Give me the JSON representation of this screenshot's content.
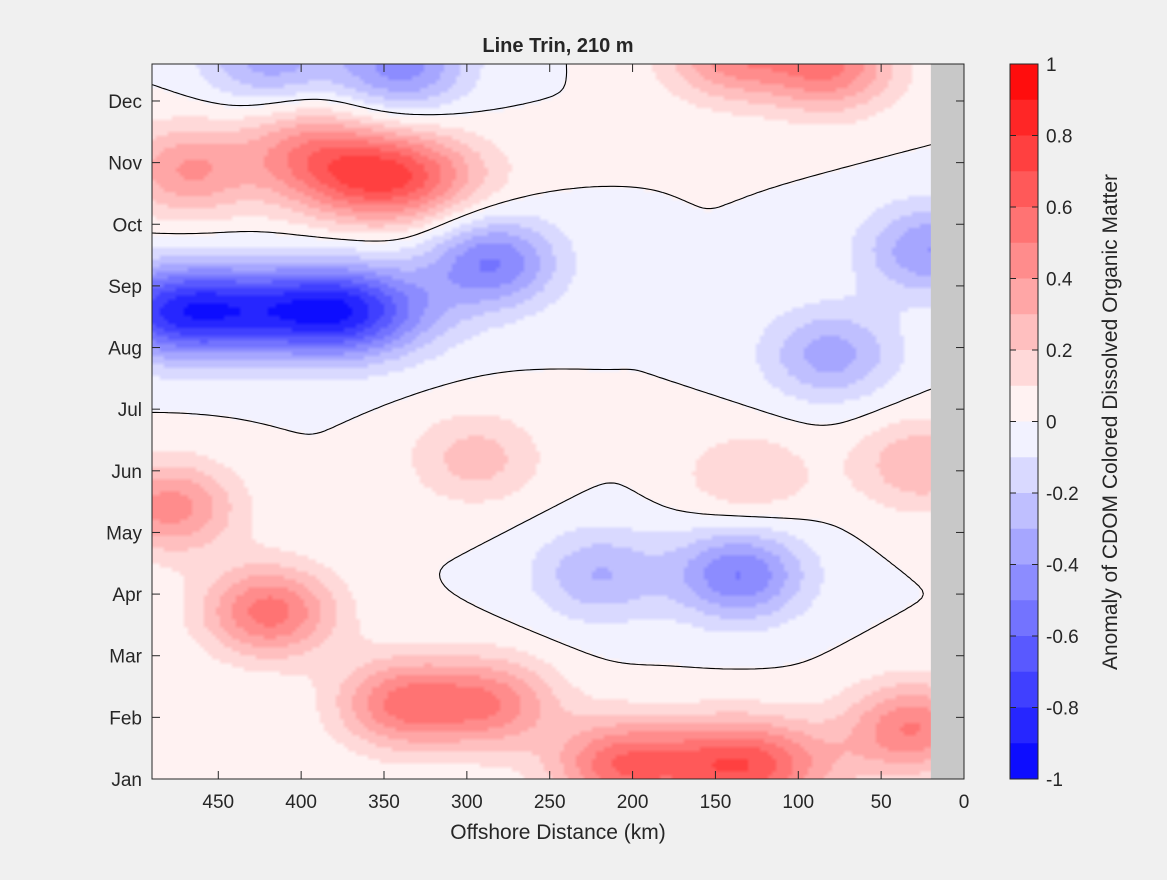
{
  "chart_data": {
    "type": "heatmap",
    "title": "Line Trin, 210 m",
    "xlabel": "Offshore Distance (km)",
    "ylabel": "",
    "xlim": [
      490,
      0
    ],
    "x_reversed": true,
    "x_ticks": [
      450,
      400,
      350,
      300,
      250,
      200,
      150,
      100,
      50,
      0
    ],
    "y_tick_labels": [
      "Jan",
      "Feb",
      "Mar",
      "Apr",
      "May",
      "Jun",
      "Jul",
      "Aug",
      "Sep",
      "Oct",
      "Nov",
      "Dec"
    ],
    "no_data_region_km": [
      0,
      20
    ],
    "colorbar": {
      "label": "Anomaly of CDOM Colored Dissolved Organic Matter",
      "range": [
        -1,
        1
      ],
      "ticks": [
        "1",
        "0.8",
        "0.6",
        "0.4",
        "0.2",
        "0",
        "-0.2",
        "-0.4",
        "-0.6",
        "-0.8",
        "-1"
      ],
      "levels": 20,
      "low_color": "#0000ff",
      "mid_color": "#ffffff",
      "high_color": "#ff0000",
      "nodata_color": "#c8c8c8",
      "contour_color": "#000000"
    },
    "features": [
      {
        "kind": "blob",
        "x_km": 380,
        "month": 7.6,
        "anomaly": -0.9
      },
      {
        "kind": "blob",
        "x_km": 470,
        "month": 7.6,
        "anomaly": -0.85
      },
      {
        "kind": "blob",
        "x_km": 285,
        "month": 8.4,
        "anomaly": -0.5
      },
      {
        "kind": "blob",
        "x_km": 340,
        "month": 11.6,
        "anomaly": -0.45
      },
      {
        "kind": "blob",
        "x_km": 420,
        "month": 11.7,
        "anomaly": -0.35
      },
      {
        "kind": "blob",
        "x_km": 135,
        "month": 3.3,
        "anomaly": -0.5
      },
      {
        "kind": "blob",
        "x_km": 220,
        "month": 3.3,
        "anomaly": -0.3
      },
      {
        "kind": "blob",
        "x_km": 80,
        "month": 6.9,
        "anomaly": -0.35
      },
      {
        "kind": "blob",
        "x_km": 20,
        "month": 8.6,
        "anomaly": -0.4
      },
      {
        "kind": "blob",
        "x_km": 350,
        "month": 9.8,
        "anomaly": 0.75
      },
      {
        "kind": "blob",
        "x_km": 470,
        "month": 9.9,
        "anomaly": 0.4
      },
      {
        "kind": "blob",
        "x_km": 400,
        "month": 10.3,
        "anomaly": 0.3
      },
      {
        "kind": "blob",
        "x_km": 420,
        "month": 2.7,
        "anomaly": 0.55
      },
      {
        "kind": "blob",
        "x_km": 480,
        "month": 4.4,
        "anomaly": 0.45
      },
      {
        "kind": "blob",
        "x_km": 340,
        "month": 1.2,
        "anomaly": 0.5
      },
      {
        "kind": "blob",
        "x_km": 285,
        "month": 1.2,
        "anomaly": 0.45
      },
      {
        "kind": "blob",
        "x_km": 135,
        "month": 0.2,
        "anomaly": 0.7
      },
      {
        "kind": "blob",
        "x_km": 210,
        "month": 0.2,
        "anomaly": 0.5
      },
      {
        "kind": "blob",
        "x_km": 30,
        "month": 0.8,
        "anomaly": 0.5
      },
      {
        "kind": "blob",
        "x_km": 130,
        "month": 4.9,
        "anomaly": 0.2
      },
      {
        "kind": "blob",
        "x_km": 295,
        "month": 5.2,
        "anomaly": 0.25
      },
      {
        "kind": "blob",
        "x_km": 80,
        "month": 11.6,
        "anomaly": 0.5
      },
      {
        "kind": "blob",
        "x_km": 140,
        "month": 11.8,
        "anomaly": 0.45
      },
      {
        "kind": "blob",
        "x_km": 25,
        "month": 5.1,
        "anomaly": 0.3
      }
    ]
  }
}
